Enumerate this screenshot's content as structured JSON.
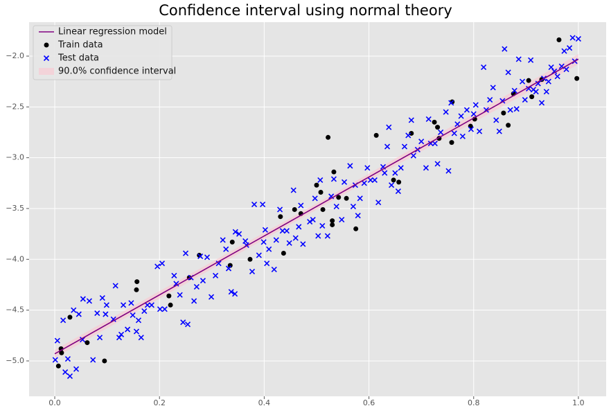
{
  "chart_data": {
    "type": "scatter",
    "title": "Confidence interval using normal theory",
    "xlim": [
      -0.049,
      1.053
    ],
    "ylim": [
      -5.348,
      -1.666
    ],
    "xticks": [
      {
        "value": 0,
        "label": "0.0"
      },
      0.2,
      0.4,
      0.6,
      0.8,
      {
        "value": 1,
        "label": "1.0"
      }
    ],
    "yticks": [
      {
        "value": -5,
        "label": "−5.0"
      },
      {
        "value": -4.5,
        "label": "−4.5"
      },
      {
        "value": -4,
        "label": "−4.0"
      },
      {
        "value": -3.5,
        "label": "−3.5"
      },
      {
        "value": -3,
        "label": "−3.0"
      },
      {
        "value": -2.5,
        "label": "−2.5"
      },
      {
        "value": -2,
        "label": "−2.0"
      }
    ],
    "grid": true,
    "legend": "upper left",
    "line": {
      "name": "Linear regression model",
      "color": "#800080",
      "x": [
        0,
        0.5,
        1
      ],
      "values": [
        -4.93,
        -3.48,
        -2.03
      ]
    },
    "series": [
      {
        "name": "Train data",
        "color": "#000000",
        "marker": "o",
        "x": [
          0.007,
          0.012,
          0.013,
          0.029,
          0.062,
          0.095,
          0.157,
          0.156,
          0.218,
          0.221,
          0.257,
          0.276,
          0.335,
          0.339,
          0.373,
          0.431,
          0.437,
          0.458,
          0.47,
          0.5,
          0.508,
          0.512,
          0.522,
          0.533,
          0.53,
          0.53,
          0.542,
          0.557,
          0.575,
          0.614,
          0.647,
          0.657,
          0.681,
          0.725,
          0.731,
          0.734,
          0.759,
          0.758,
          0.794,
          0.802,
          0.857,
          0.866,
          0.876,
          0.905,
          0.911,
          0.93,
          0.963,
          0.997
        ],
        "values": [
          -5.05,
          -4.88,
          -4.92,
          -4.57,
          -4.82,
          -5.0,
          -4.22,
          -4.3,
          -4.36,
          -4.45,
          -4.18,
          -3.96,
          -4.06,
          -3.83,
          -4.0,
          -3.58,
          -3.94,
          -3.51,
          -3.55,
          -3.27,
          -3.34,
          -3.51,
          -2.8,
          -3.14,
          -3.66,
          -3.62,
          -3.39,
          -3.4,
          -3.7,
          -2.78,
          -3.22,
          -3.24,
          -2.76,
          -2.65,
          -2.7,
          -2.81,
          -2.45,
          -2.85,
          -2.69,
          -2.62,
          -2.56,
          -2.68,
          -2.37,
          -2.24,
          -2.4,
          -2.23,
          -1.84,
          -2.22
        ]
      },
      {
        "name": "Test data",
        "color": "#0000ff",
        "marker": "x",
        "x": [
          0.001,
          0.005,
          0.016,
          0.02,
          0.025,
          0.029,
          0.036,
          0.041,
          0.046,
          0.054,
          0.053,
          0.066,
          0.073,
          0.081,
          0.086,
          0.091,
          0.097,
          0.099,
          0.112,
          0.116,
          0.123,
          0.127,
          0.131,
          0.139,
          0.146,
          0.149,
          0.156,
          0.16,
          0.165,
          0.171,
          0.177,
          0.185,
          0.196,
          0.205,
          0.201,
          0.21,
          0.228,
          0.232,
          0.239,
          0.245,
          0.25,
          0.254,
          0.26,
          0.266,
          0.271,
          0.278,
          0.283,
          0.291,
          0.299,
          0.307,
          0.313,
          0.321,
          0.327,
          0.332,
          0.337,
          0.344,
          0.345,
          0.352,
          0.364,
          0.366,
          0.377,
          0.381,
          0.39,
          0.397,
          0.399,
          0.402,
          0.405,
          0.409,
          0.419,
          0.423,
          0.43,
          0.435,
          0.443,
          0.448,
          0.456,
          0.46,
          0.466,
          0.47,
          0.474,
          0.487,
          0.493,
          0.497,
          0.503,
          0.507,
          0.511,
          0.521,
          0.528,
          0.533,
          0.538,
          0.548,
          0.553,
          0.564,
          0.57,
          0.574,
          0.579,
          0.583,
          0.591,
          0.597,
          0.603,
          0.611,
          0.618,
          0.627,
          0.63,
          0.635,
          0.638,
          0.643,
          0.65,
          0.656,
          0.661,
          0.668,
          0.675,
          0.681,
          0.685,
          0.693,
          0.7,
          0.709,
          0.714,
          0.718,
          0.726,
          0.731,
          0.737,
          0.747,
          0.752,
          0.757,
          0.763,
          0.769,
          0.776,
          0.779,
          0.787,
          0.795,
          0.8,
          0.804,
          0.811,
          0.819,
          0.824,
          0.831,
          0.837,
          0.843,
          0.849,
          0.855,
          0.859,
          0.866,
          0.87,
          0.878,
          0.882,
          0.886,
          0.893,
          0.898,
          0.905,
          0.909,
          0.914,
          0.919,
          0.923,
          0.93,
          0.934,
          0.939,
          0.943,
          0.948,
          0.954,
          0.96,
          0.968,
          0.973,
          0.977,
          0.983,
          0.989,
          0.993,
          1.0
        ],
        "values": [
          -4.99,
          -4.8,
          -4.6,
          -5.11,
          -4.98,
          -5.15,
          -4.5,
          -5.08,
          -4.54,
          -4.39,
          -4.79,
          -4.41,
          -4.99,
          -4.53,
          -4.77,
          -4.38,
          -4.54,
          -4.45,
          -4.59,
          -4.26,
          -4.77,
          -4.74,
          -4.45,
          -4.69,
          -4.43,
          -4.55,
          -4.71,
          -4.6,
          -4.77,
          -4.51,
          -4.45,
          -4.45,
          -4.07,
          -4.04,
          -4.49,
          -4.49,
          -4.16,
          -4.24,
          -4.35,
          -4.62,
          -3.94,
          -4.64,
          -4.18,
          -4.41,
          -4.27,
          -3.97,
          -4.21,
          -3.98,
          -4.37,
          -4.16,
          -4.04,
          -3.81,
          -3.9,
          -4.09,
          -4.32,
          -4.34,
          -3.73,
          -3.75,
          -3.82,
          -3.86,
          -4.12,
          -3.46,
          -3.96,
          -3.46,
          -3.83,
          -3.71,
          -4.04,
          -3.9,
          -4.1,
          -3.81,
          -3.51,
          -3.72,
          -3.72,
          -3.84,
          -3.32,
          -3.79,
          -3.68,
          -3.47,
          -3.85,
          -3.63,
          -3.61,
          -3.4,
          -3.77,
          -3.22,
          -3.67,
          -3.77,
          -3.38,
          -3.21,
          -3.48,
          -3.61,
          -3.24,
          -3.08,
          -3.48,
          -3.27,
          -3.57,
          -3.4,
          -3.25,
          -3.1,
          -3.22,
          -3.22,
          -3.44,
          -3.09,
          -3.15,
          -2.89,
          -2.7,
          -3.27,
          -3.15,
          -3.33,
          -3.1,
          -2.89,
          -2.78,
          -2.63,
          -2.98,
          -2.92,
          -2.84,
          -3.1,
          -2.62,
          -2.86,
          -2.86,
          -3.06,
          -2.75,
          -2.55,
          -3.13,
          -2.46,
          -2.76,
          -2.67,
          -2.59,
          -2.79,
          -2.53,
          -2.72,
          -2.57,
          -2.48,
          -2.74,
          -2.11,
          -2.53,
          -2.43,
          -2.31,
          -2.63,
          -2.74,
          -2.44,
          -1.93,
          -2.16,
          -2.53,
          -2.34,
          -2.52,
          -2.03,
          -2.25,
          -2.43,
          -2.32,
          -2.04,
          -2.33,
          -2.35,
          -2.27,
          -2.46,
          -2.22,
          -2.35,
          -2.25,
          -2.11,
          -2.15,
          -2.2,
          -2.1,
          -1.95,
          -2.13,
          -1.92,
          -1.82,
          -2.05,
          -1.83
        ]
      }
    ],
    "band": {
      "name": "90.0% confidence interval",
      "color": "#ffc0cb",
      "x": [
        0,
        0.5,
        1
      ],
      "lower": [
        -4.97,
        -3.51,
        -2.08
      ],
      "upper": [
        -4.89,
        -3.45,
        -1.98
      ]
    }
  }
}
